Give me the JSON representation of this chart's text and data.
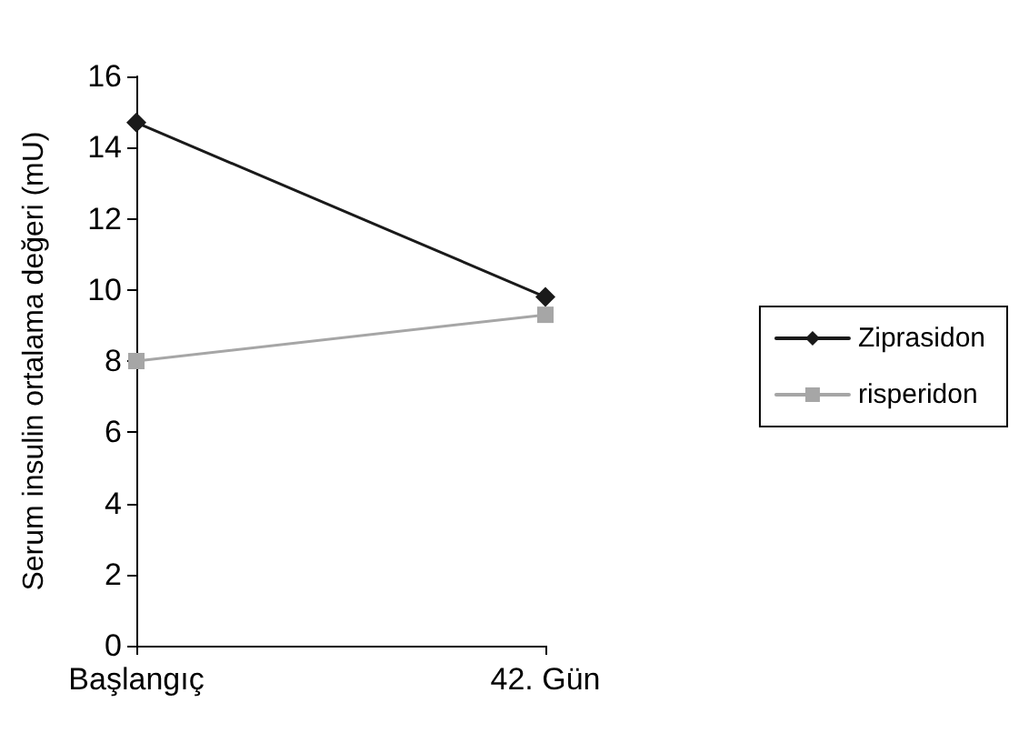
{
  "chart_data": {
    "type": "line",
    "ylabel": "Serum insulin ortalama değeri (mU)",
    "categories": [
      "Başlangıç",
      "42. Gün"
    ],
    "series": [
      {
        "name": "Ziprasidon",
        "color": "#1a1a1a",
        "marker": "diamond",
        "values": [
          14.7,
          9.8
        ]
      },
      {
        "name": "risperidon",
        "color": "#a6a6a6",
        "marker": "square",
        "values": [
          8.0,
          9.3
        ]
      }
    ],
    "ylim": [
      0,
      16
    ],
    "yticks": [
      0,
      2,
      4,
      6,
      8,
      10,
      12,
      14,
      16
    ],
    "grid": false,
    "legend": "right"
  }
}
